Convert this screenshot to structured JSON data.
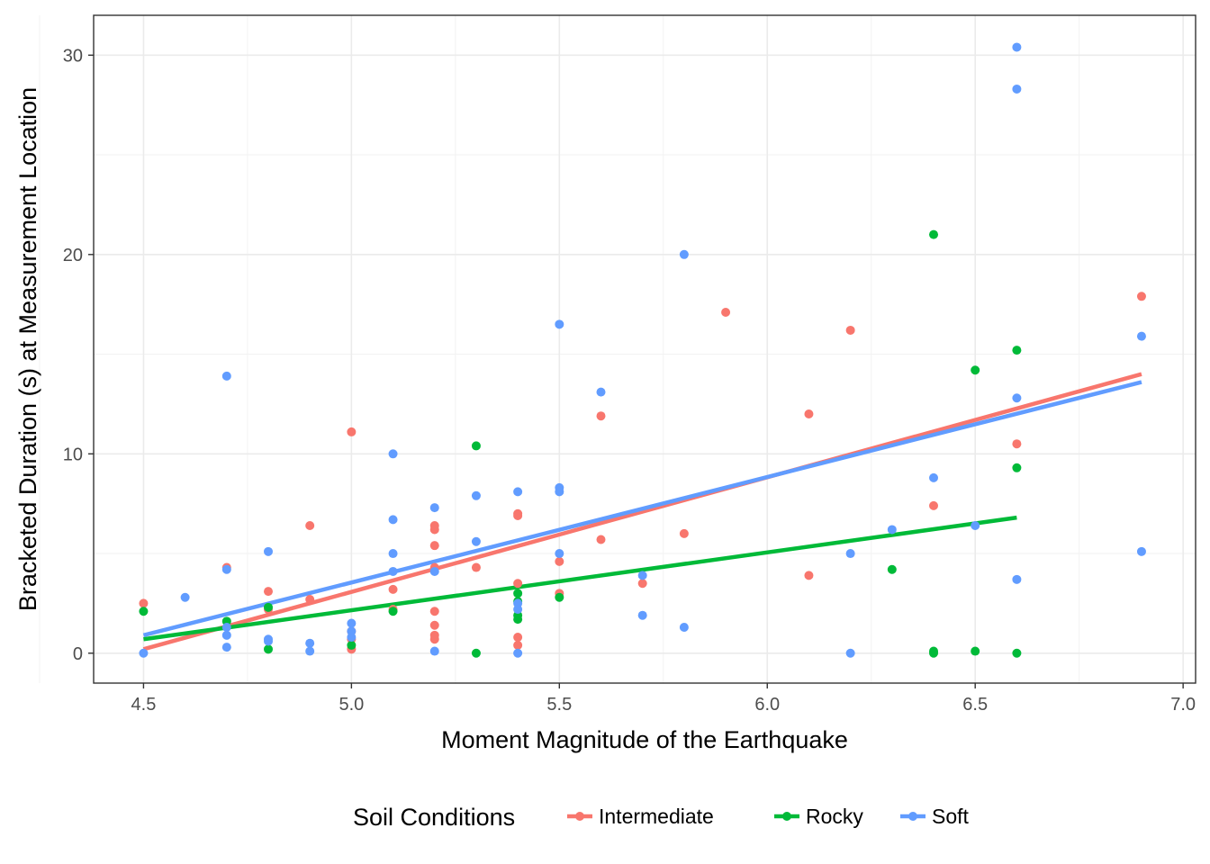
{
  "chart_data": {
    "type": "scatter",
    "title": "",
    "xlabel": "Moment Magnitude of the Earthquake",
    "ylabel": "Bracketed Duration (s) at Measurement Location",
    "xlim": [
      4.38,
      7.03
    ],
    "ylim": [
      -1.5,
      32.0
    ],
    "x_ticks": [
      "4.5",
      "5.0",
      "5.5",
      "6.0",
      "6.5",
      "7.0"
    ],
    "y_ticks": [
      "0",
      "10",
      "20",
      "30"
    ],
    "grid": true,
    "legend": {
      "title": "Soil Conditions",
      "position": "bottom"
    },
    "series": [
      {
        "name": "Intermediate",
        "color": "#F8766D",
        "trend": {
          "x": [
            4.5,
            6.9
          ],
          "y": [
            0.2,
            14.0
          ]
        },
        "points": [
          [
            4.5,
            2.5
          ],
          [
            4.7,
            4.3
          ],
          [
            4.8,
            3.1
          ],
          [
            4.8,
            2.2
          ],
          [
            4.9,
            6.4
          ],
          [
            4.9,
            2.7
          ],
          [
            5.0,
            11.1
          ],
          [
            5.0,
            1.1
          ],
          [
            5.0,
            0.7
          ],
          [
            5.0,
            0.2
          ],
          [
            5.1,
            3.2
          ],
          [
            5.1,
            2.2
          ],
          [
            5.2,
            6.4
          ],
          [
            5.2,
            6.2
          ],
          [
            5.2,
            5.4
          ],
          [
            5.2,
            4.3
          ],
          [
            5.2,
            2.1
          ],
          [
            5.2,
            1.4
          ],
          [
            5.2,
            0.9
          ],
          [
            5.2,
            0.7
          ],
          [
            5.3,
            4.3
          ],
          [
            5.4,
            7.0
          ],
          [
            5.4,
            6.9
          ],
          [
            5.4,
            3.5
          ],
          [
            5.4,
            0.8
          ],
          [
            5.4,
            0.4
          ],
          [
            5.5,
            4.6
          ],
          [
            5.5,
            3.0
          ],
          [
            5.6,
            11.9
          ],
          [
            5.6,
            5.7
          ],
          [
            5.7,
            3.5
          ],
          [
            5.8,
            6.0
          ],
          [
            5.9,
            17.1
          ],
          [
            6.1,
            12.0
          ],
          [
            6.1,
            3.9
          ],
          [
            6.2,
            16.2
          ],
          [
            6.4,
            7.4
          ],
          [
            6.6,
            10.5
          ],
          [
            6.9,
            17.9
          ]
        ]
      },
      {
        "name": "Rocky",
        "color": "#00BA38",
        "trend": {
          "x": [
            4.5,
            6.6
          ],
          "y": [
            0.7,
            6.8
          ]
        },
        "points": [
          [
            4.5,
            2.1
          ],
          [
            4.7,
            1.6
          ],
          [
            4.8,
            2.3
          ],
          [
            4.8,
            0.2
          ],
          [
            5.0,
            0.4
          ],
          [
            5.1,
            2.1
          ],
          [
            5.3,
            10.4
          ],
          [
            5.3,
            0.0
          ],
          [
            5.4,
            3.0
          ],
          [
            5.4,
            2.6
          ],
          [
            5.4,
            1.9
          ],
          [
            5.4,
            1.7
          ],
          [
            5.5,
            2.8
          ],
          [
            6.3,
            4.2
          ],
          [
            6.4,
            21.0
          ],
          [
            6.4,
            0.1
          ],
          [
            6.4,
            0.0
          ],
          [
            6.5,
            14.2
          ],
          [
            6.5,
            0.1
          ],
          [
            6.6,
            15.2
          ],
          [
            6.6,
            9.3
          ],
          [
            6.6,
            0.0
          ]
        ]
      },
      {
        "name": "Soft",
        "color": "#619CFF",
        "trend": {
          "x": [
            4.5,
            6.9
          ],
          "y": [
            0.9,
            13.6
          ]
        },
        "points": [
          [
            4.5,
            0.0
          ],
          [
            4.6,
            2.8
          ],
          [
            4.7,
            13.9
          ],
          [
            4.7,
            4.2
          ],
          [
            4.7,
            1.3
          ],
          [
            4.7,
            0.9
          ],
          [
            4.7,
            0.3
          ],
          [
            4.8,
            5.1
          ],
          [
            4.8,
            0.7
          ],
          [
            4.8,
            0.6
          ],
          [
            4.9,
            0.5
          ],
          [
            4.9,
            0.1
          ],
          [
            5.0,
            1.5
          ],
          [
            5.0,
            1.1
          ],
          [
            5.0,
            0.8
          ],
          [
            5.1,
            10.0
          ],
          [
            5.1,
            6.7
          ],
          [
            5.1,
            5.0
          ],
          [
            5.1,
            4.1
          ],
          [
            5.2,
            7.3
          ],
          [
            5.2,
            4.1
          ],
          [
            5.2,
            0.1
          ],
          [
            5.3,
            7.9
          ],
          [
            5.3,
            5.6
          ],
          [
            5.4,
            8.1
          ],
          [
            5.4,
            2.5
          ],
          [
            5.4,
            2.2
          ],
          [
            5.4,
            0.0
          ],
          [
            5.5,
            16.5
          ],
          [
            5.5,
            8.3
          ],
          [
            5.5,
            8.1
          ],
          [
            5.5,
            5.0
          ],
          [
            5.6,
            13.1
          ],
          [
            5.7,
            3.9
          ],
          [
            5.7,
            1.9
          ],
          [
            5.8,
            20.0
          ],
          [
            5.8,
            1.3
          ],
          [
            6.2,
            5.0
          ],
          [
            6.2,
            0.0
          ],
          [
            6.3,
            6.2
          ],
          [
            6.4,
            8.8
          ],
          [
            6.5,
            6.4
          ],
          [
            6.6,
            30.4
          ],
          [
            6.6,
            28.3
          ],
          [
            6.6,
            12.8
          ],
          [
            6.6,
            3.7
          ],
          [
            6.9,
            15.9
          ],
          [
            6.9,
            5.1
          ]
        ]
      }
    ]
  }
}
